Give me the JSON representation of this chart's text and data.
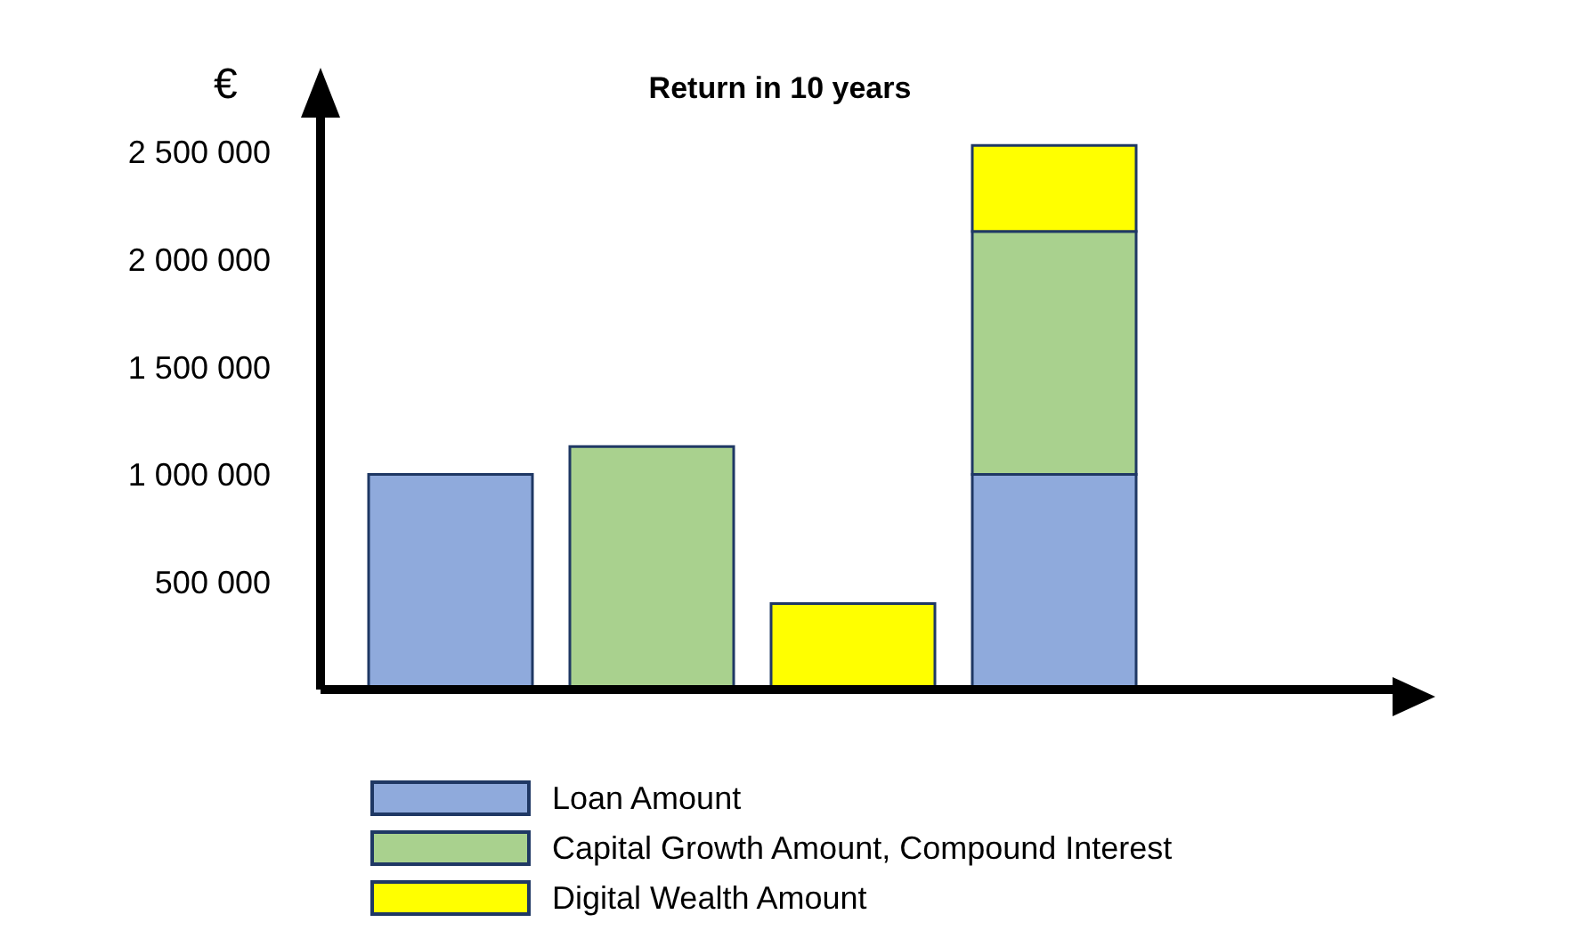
{
  "chart_data": {
    "type": "bar",
    "title": "Return in 10 years",
    "ylabel": "€",
    "stacked": true,
    "categories": [
      null,
      null,
      null,
      null
    ],
    "series": [
      {
        "name": "Loan Amount",
        "color": "#8faadc",
        "values": [
          1000000,
          null,
          null,
          1000000
        ]
      },
      {
        "name": "Capital Growth Amount, Compound Interest",
        "color": "#a9d18e",
        "values": [
          null,
          1130000,
          null,
          1130000
        ]
      },
      {
        "name": "Digital Wealth Amount",
        "color": "#ffff00",
        "values": [
          null,
          null,
          400000,
          400000
        ]
      }
    ],
    "ylim": [
      0,
      2800000
    ],
    "yticks": [
      {
        "value": 500000,
        "label": "500 000"
      },
      {
        "value": 1000000,
        "label": "1 000 000"
      },
      {
        "value": 1500000,
        "label": "1 500 000"
      },
      {
        "value": 2000000,
        "label": "2 000 000"
      },
      {
        "value": 2500000,
        "label": "2 500 000"
      }
    ],
    "tick_labels": "y",
    "grid": false,
    "legend": "bottom"
  }
}
